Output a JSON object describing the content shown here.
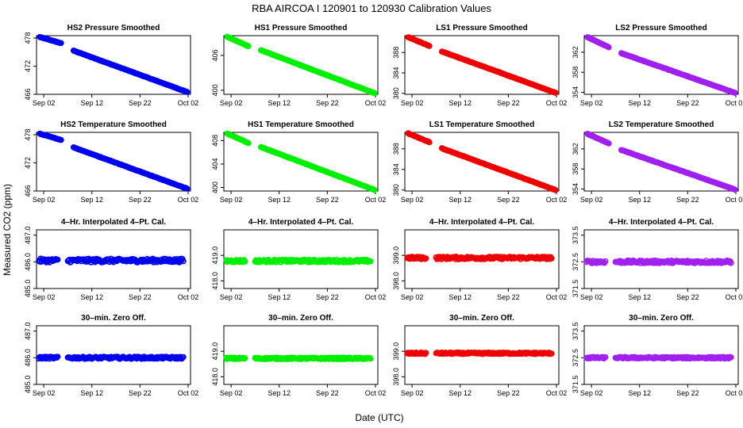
{
  "figure": {
    "title": "RBA   AIRCOA I   120901 to 120930   Calibration Values",
    "ylabel": "Measured CO2 (ppm)",
    "xlabel": "Date (UTC)"
  },
  "x_ticks": [
    "Sep 02",
    "Sep 12",
    "Sep 22",
    "Oct 02"
  ],
  "x_tick_days": [
    2,
    12,
    22,
    32
  ],
  "x_range_days": [
    0.5,
    32.5
  ],
  "colors": {
    "HS2": "#0000ee",
    "HS1": "#00ee00",
    "LS1": "#ee0000",
    "LS2": "#a020f0"
  },
  "chart_data": [
    {
      "type": "scatter",
      "title": "HS2 Pressure Smoothed",
      "series_key": "HS2",
      "yticks": [
        466,
        472,
        478
      ],
      "ylim": [
        466,
        478.5
      ],
      "segments": [
        {
          "start_day": 1.2,
          "end_day": 5.6,
          "start_value": 478.2,
          "end_value": 476.9
        },
        {
          "start_day": 8.2,
          "end_day": 31.8,
          "start_value": 475.3,
          "end_value": 466.5
        }
      ]
    },
    {
      "type": "scatter",
      "title": "HS1 Pressure Smoothed",
      "series_key": "HS1",
      "yticks": [
        400,
        406
      ],
      "ylim": [
        399.3,
        409.4
      ],
      "segments": [
        {
          "start_day": 1.2,
          "end_day": 5.6,
          "start_value": 409.2,
          "end_value": 407.6
        },
        {
          "start_day": 8.2,
          "end_day": 31.8,
          "start_value": 406.9,
          "end_value": 399.5
        }
      ]
    },
    {
      "type": "scatter",
      "title": "LS1 Pressure Smoothed",
      "series_key": "LS1",
      "yticks": [
        380,
        384,
        388
      ],
      "ylim": [
        379.8,
        391.3
      ],
      "segments": [
        {
          "start_day": 1.2,
          "end_day": 5.6,
          "start_value": 391.0,
          "end_value": 389.3
        },
        {
          "start_day": 8.2,
          "end_day": 31.8,
          "start_value": 388.2,
          "end_value": 380.1
        }
      ]
    },
    {
      "type": "scatter",
      "title": "LS2 Pressure Smoothed",
      "series_key": "LS2",
      "yticks": [
        354,
        358,
        362
      ],
      "ylim": [
        353.6,
        365.3
      ],
      "segments": [
        {
          "start_day": 1.2,
          "end_day": 5.6,
          "start_value": 365.0,
          "end_value": 363.0
        },
        {
          "start_day": 8.2,
          "end_day": 31.8,
          "start_value": 361.8,
          "end_value": 353.9
        }
      ]
    },
    {
      "type": "scatter",
      "title": "HS2 Temperature Smoothed",
      "series_key": "HS2",
      "yticks": [
        466,
        472,
        478
      ],
      "ylim": [
        466,
        478.5
      ],
      "segments": [
        {
          "start_day": 1.2,
          "end_day": 5.6,
          "start_value": 478.2,
          "end_value": 476.9
        },
        {
          "start_day": 8.2,
          "end_day": 31.8,
          "start_value": 475.3,
          "end_value": 466.5
        }
      ]
    },
    {
      "type": "scatter",
      "title": "HS1 Temperature Smoothed",
      "series_key": "HS1",
      "yticks": [
        400,
        404,
        408
      ],
      "ylim": [
        399.4,
        409.4
      ],
      "segments": [
        {
          "start_day": 1.2,
          "end_day": 5.6,
          "start_value": 409.2,
          "end_value": 407.6
        },
        {
          "start_day": 8.2,
          "end_day": 31.8,
          "start_value": 406.9,
          "end_value": 399.6
        }
      ]
    },
    {
      "type": "scatter",
      "title": "LS1 Temperature Smoothed",
      "series_key": "LS1",
      "yticks": [
        380,
        384,
        388
      ],
      "ylim": [
        379.8,
        391.2
      ],
      "segments": [
        {
          "start_day": 1.2,
          "end_day": 5.6,
          "start_value": 391.0,
          "end_value": 389.3
        },
        {
          "start_day": 8.2,
          "end_day": 31.8,
          "start_value": 388.1,
          "end_value": 380.0
        }
      ]
    },
    {
      "type": "scatter",
      "title": "LS2 Temperature Smoothed",
      "series_key": "LS2",
      "yticks": [
        354,
        358,
        362
      ],
      "ylim": [
        353.6,
        365.3
      ],
      "segments": [
        {
          "start_day": 1.2,
          "end_day": 5.6,
          "start_value": 365.0,
          "end_value": 363.1
        },
        {
          "start_day": 8.2,
          "end_day": 31.8,
          "start_value": 361.8,
          "end_value": 353.9
        }
      ]
    },
    {
      "type": "scatter",
      "title": "4–Hr. Interpolated 4–Pt. Cal.",
      "series_key": "HS2",
      "yticks": [
        "485.0",
        "486.0",
        "487.0"
      ],
      "ylim": [
        485.0,
        487.2
      ],
      "level": 486.05,
      "spread": 0.07,
      "segments": [
        {
          "start_day": 1.0,
          "end_day": 4.9
        },
        {
          "start_day": 7.0,
          "end_day": 31.0
        }
      ]
    },
    {
      "type": "scatter",
      "title": "4–Hr. Interpolated 4–Pt. Cal.",
      "series_key": "HS1",
      "yticks": [
        "418.0",
        "419.0"
      ],
      "ylim": [
        417.7,
        420.0
      ],
      "level": 418.78,
      "spread": 0.05,
      "segments": [
        {
          "start_day": 1.0,
          "end_day": 4.9
        },
        {
          "start_day": 7.0,
          "end_day": 31.0
        }
      ]
    },
    {
      "type": "scatter",
      "title": "4–Hr. Interpolated 4–Pt. Cal.",
      "series_key": "LS1",
      "yticks": [
        "398.0",
        "399.0"
      ],
      "ylim": [
        397.7,
        400.0
      ],
      "level": 398.9,
      "spread": 0.05,
      "segments": [
        {
          "start_day": 1.0,
          "end_day": 4.9
        },
        {
          "start_day": 7.0,
          "end_day": 31.0
        }
      ]
    },
    {
      "type": "scatter",
      "title": "4–Hr. Interpolated 4–Pt. Cal.",
      "series_key": "LS2",
      "yticks": [
        "371.5",
        "372.5",
        "373.5"
      ],
      "ylim": [
        371.5,
        373.7
      ],
      "level": 372.5,
      "spread": 0.05,
      "segments": [
        {
          "start_day": 1.0,
          "end_day": 4.9
        },
        {
          "start_day": 7.0,
          "end_day": 31.0
        }
      ]
    },
    {
      "type": "scatter",
      "title": "30–min. Zero Off.",
      "series_key": "HS2",
      "yticks": [
        "485.0",
        "486.0",
        "487.0"
      ],
      "ylim": [
        485.0,
        487.2
      ],
      "level": 486.0,
      "spread": 0.04,
      "segments": [
        {
          "start_day": 1.0,
          "end_day": 4.9
        },
        {
          "start_day": 7.0,
          "end_day": 31.0
        }
      ]
    },
    {
      "type": "scatter",
      "title": "30–min. Zero Off.",
      "series_key": "HS1",
      "yticks": [
        "418.0",
        "419.0"
      ],
      "ylim": [
        417.7,
        420.0
      ],
      "level": 418.72,
      "spread": 0.03,
      "segments": [
        {
          "start_day": 1.0,
          "end_day": 4.9
        },
        {
          "start_day": 7.0,
          "end_day": 31.0
        }
      ]
    },
    {
      "type": "scatter",
      "title": "30–min. Zero Off.",
      "series_key": "LS1",
      "yticks": [
        "398.0",
        "399.0"
      ],
      "ylim": [
        397.7,
        400.0
      ],
      "level": 398.92,
      "spread": 0.03,
      "segments": [
        {
          "start_day": 1.0,
          "end_day": 4.9
        },
        {
          "start_day": 7.0,
          "end_day": 31.0
        }
      ]
    },
    {
      "type": "scatter",
      "title": "30–min. Zero Off.",
      "series_key": "LS2",
      "yticks": [
        "371.5",
        "372.5",
        "373.5"
      ],
      "ylim": [
        371.5,
        373.7
      ],
      "level": 372.5,
      "spread": 0.03,
      "segments": [
        {
          "start_day": 1.0,
          "end_day": 4.9
        },
        {
          "start_day": 7.0,
          "end_day": 31.0
        }
      ]
    }
  ]
}
